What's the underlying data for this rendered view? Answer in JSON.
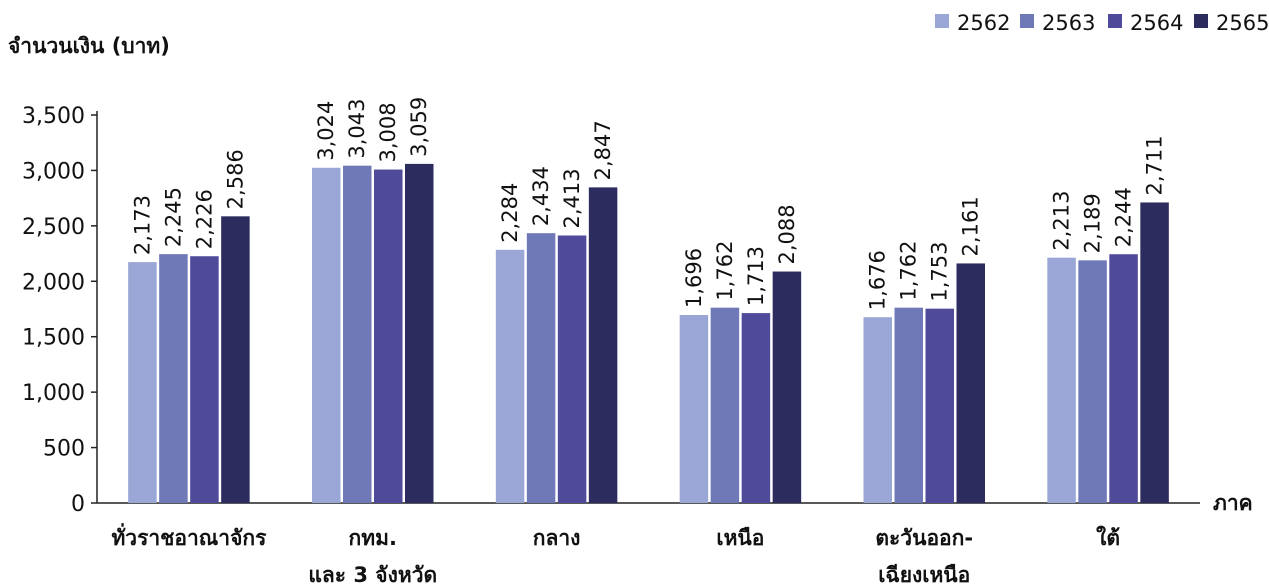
{
  "chart_data": {
    "type": "bar",
    "ylabel": "จำนวนเงิน (บาท)",
    "xlabel": "ภาค",
    "ylim": [
      0,
      3500
    ],
    "yticks": [
      0,
      500,
      1000,
      1500,
      2000,
      2500,
      3000,
      3500
    ],
    "ytick_labels": [
      "0",
      "500",
      "1,000",
      "1,500",
      "2,000",
      "2,500",
      "3,000",
      "3,500"
    ],
    "legend_position": "top-right",
    "grid": false,
    "categories": [
      [
        "ทั่วราชอาณาจักร"
      ],
      [
        "กทม.",
        "และ 3 จังหวัด"
      ],
      [
        "กลาง"
      ],
      [
        "เหนือ"
      ],
      [
        "ตะวันออก-",
        "เฉียงเหนือ"
      ],
      [
        "ใต้"
      ]
    ],
    "series": [
      {
        "name": "2562",
        "color": "#9aa6d6",
        "values": [
          2173,
          3024,
          2284,
          1696,
          1676,
          2213
        ],
        "labels": [
          "2,173",
          "3,024",
          "2,284",
          "1,696",
          "1,676",
          "2,213"
        ]
      },
      {
        "name": "2563",
        "color": "#6f79b8",
        "values": [
          2245,
          3043,
          2434,
          1762,
          1762,
          2189
        ],
        "labels": [
          "2,245",
          "3,043",
          "2,434",
          "1,762",
          "1,762",
          "2,189"
        ]
      },
      {
        "name": "2564",
        "color": "#4f4a9a",
        "values": [
          2226,
          3008,
          2413,
          1713,
          1753,
          2244
        ],
        "labels": [
          "2,226",
          "3,008",
          "2,413",
          "1,713",
          "1,753",
          "2,244"
        ]
      },
      {
        "name": "2565",
        "color": "#2c2c5e",
        "values": [
          2586,
          3059,
          2847,
          2088,
          2161,
          2711
        ],
        "labels": [
          "2,586",
          "3,059",
          "2,847",
          "2,088",
          "2,161",
          "2,711"
        ]
      }
    ]
  }
}
